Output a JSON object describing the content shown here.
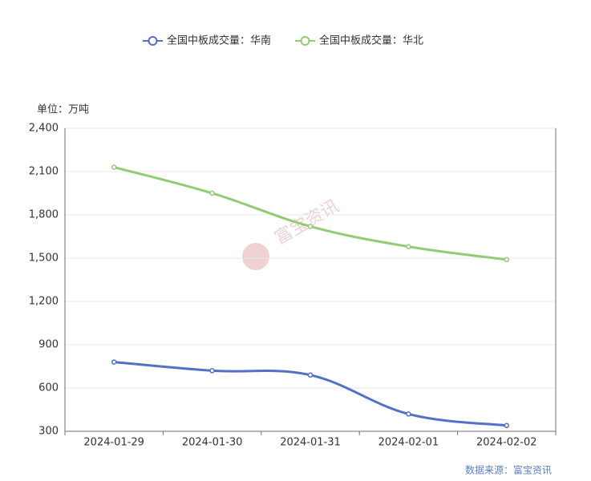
{
  "chart_data": {
    "type": "line",
    "unit_label": "单位：万吨",
    "watermark": "富宝资讯",
    "source": "数据来源：富宝资讯",
    "categories": [
      "2024-01-29",
      "2024-01-30",
      "2024-01-31",
      "2024-02-01",
      "2024-02-02"
    ],
    "series": [
      {
        "name": "全国中板成交量：华南",
        "color": "#5470c6",
        "values": [
          780,
          720,
          690,
          420,
          340
        ]
      },
      {
        "name": "全国中板成交量：华北",
        "color": "#91cc75",
        "values": [
          2130,
          1950,
          1720,
          1580,
          1490
        ]
      }
    ],
    "ylim": [
      300,
      2400
    ],
    "yticks": [
      300,
      600,
      900,
      {
        "value": 1200,
        "label": "1,200"
      },
      {
        "value": 1500,
        "label": "1,500"
      },
      {
        "value": 1800,
        "label": "1,800"
      },
      {
        "value": 2100,
        "label": "2,100"
      },
      {
        "value": 2400,
        "label": "2,400"
      }
    ],
    "grid": true
  }
}
